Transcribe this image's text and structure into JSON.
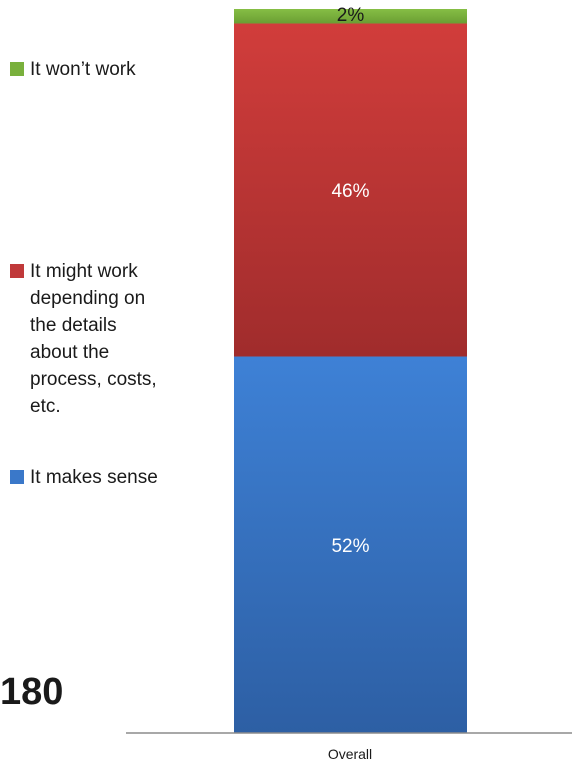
{
  "chart_data": {
    "type": "bar",
    "stacked": true,
    "orientation": "vertical",
    "categories": [
      "Overall"
    ],
    "series": [
      {
        "name": "It makes sense",
        "values": [
          52
        ],
        "color": "#3a78c9",
        "label": "52%"
      },
      {
        "name": "It might work depending on the details about the process, costs, etc.",
        "values": [
          46
        ],
        "color": "#c0393a",
        "label": "46%"
      },
      {
        "name": "It won’t work",
        "values": [
          2
        ],
        "color": "#79b03c",
        "label": "2%"
      }
    ],
    "ylim": [
      0,
      100
    ],
    "grid": false,
    "legend_position": "left"
  },
  "legend": [
    {
      "label": "It won’t work",
      "color": "#79b03c"
    },
    {
      "label": "It might work\ndepending on\nthe details\nabout the\nprocess, costs,\netc.",
      "color": "#c0393a"
    },
    {
      "label": "It makes sense",
      "color": "#3a78c9"
    }
  ],
  "footer": {
    "count": "180"
  }
}
